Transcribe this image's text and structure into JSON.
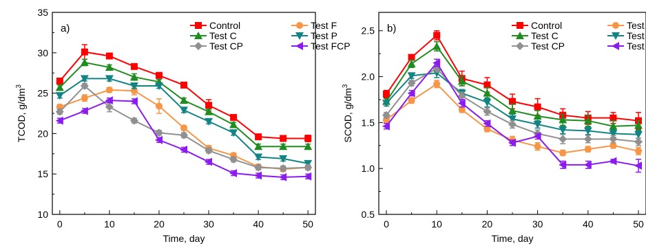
{
  "chart_data": [
    {
      "type": "line",
      "panel_label": "a)",
      "xlabel": "Time, day",
      "ylabel": "TCOD, g/dm",
      "ylabel_sup": "3",
      "xlim": [
        -1.5,
        51.5
      ],
      "ylim": [
        10,
        35
      ],
      "xticks": [
        0,
        10,
        20,
        30,
        40,
        50
      ],
      "yticks": [
        10,
        15,
        20,
        25,
        30,
        35
      ],
      "ytick_labels": [
        "10",
        "15",
        "20",
        "25",
        "30",
        "35"
      ],
      "x": [
        0,
        5,
        10,
        15,
        20,
        25,
        30,
        35,
        40,
        45,
        50
      ],
      "legend_position": "top-right",
      "series": [
        {
          "name": "Control",
          "color": "#ff0000",
          "marker": "square",
          "values": [
            26.5,
            30.1,
            29.6,
            28.3,
            27.2,
            26.0,
            23.5,
            22.0,
            19.6,
            19.4,
            19.4
          ],
          "errors": [
            0.3,
            0.9,
            0.3,
            0.3,
            0.3,
            0.3,
            0.7,
            0.3,
            0.3,
            0.3,
            0.4
          ]
        },
        {
          "name": "Test F",
          "color": "#f79646",
          "marker": "circle",
          "values": [
            23.3,
            24.4,
            25.4,
            25.3,
            23.4,
            20.7,
            18.2,
            17.3,
            15.9,
            15.6,
            15.8
          ],
          "errors": [
            0.3,
            0.4,
            0.3,
            0.5,
            0.9,
            0.3,
            0.3,
            0.3,
            0.3,
            0.3,
            0.3
          ]
        },
        {
          "name": "Test C",
          "color": "#1e8c1e",
          "marker": "triangle-up",
          "values": [
            25.7,
            28.8,
            28.2,
            27.0,
            26.4,
            24.1,
            22.7,
            21.1,
            18.4,
            18.4,
            18.4
          ],
          "errors": [
            0.3,
            0.4,
            0.3,
            0.4,
            0.3,
            0.3,
            0.3,
            0.3,
            0.3,
            0.3,
            0.3
          ]
        },
        {
          "name": "Test P",
          "color": "#138484",
          "marker": "triangle-down",
          "values": [
            24.7,
            26.8,
            26.8,
            25.9,
            25.9,
            22.9,
            21.5,
            20.1,
            17.1,
            16.9,
            16.3
          ],
          "errors": [
            0.3,
            0.3,
            0.3,
            0.3,
            0.3,
            0.3,
            0.3,
            0.3,
            0.3,
            0.3,
            0.3
          ]
        },
        {
          "name": "Test CP",
          "color": "#909090",
          "marker": "diamond",
          "values": [
            22.7,
            25.9,
            23.3,
            21.6,
            20.1,
            19.8,
            17.9,
            16.8,
            15.8,
            15.7,
            15.8
          ],
          "errors": [
            0.3,
            0.3,
            0.6,
            0.3,
            0.3,
            0.3,
            0.3,
            0.3,
            0.3,
            0.3,
            0.3
          ]
        },
        {
          "name": "Test FCP",
          "color": "#8b1cf0",
          "marker": "triangle-left",
          "values": [
            21.6,
            22.8,
            24.1,
            24.0,
            19.2,
            18.0,
            16.5,
            15.1,
            14.8,
            14.6,
            14.7
          ],
          "errors": [
            0.3,
            0.3,
            0.3,
            0.3,
            0.3,
            0.3,
            0.3,
            0.3,
            0.3,
            0.3,
            0.3
          ]
        }
      ]
    },
    {
      "type": "line",
      "panel_label": "b)",
      "xlabel": "Time, day",
      "ylabel": "SCOD, g/dm",
      "ylabel_sup": "3",
      "xlim": [
        -1.5,
        51.5
      ],
      "ylim": [
        0.5,
        2.7
      ],
      "xticks": [
        0,
        10,
        20,
        30,
        40,
        50
      ],
      "yticks": [
        0.5,
        1.0,
        1.5,
        2.0,
        2.5
      ],
      "ytick_labels": [
        "0.5",
        "1.0",
        "1.5",
        "2.0",
        "2.5"
      ],
      "x": [
        0,
        5,
        10,
        15,
        20,
        25,
        30,
        35,
        40,
        45,
        50
      ],
      "legend_position": "top-right",
      "series": [
        {
          "name": "Control",
          "color": "#ff0000",
          "marker": "square",
          "values": [
            1.81,
            2.21,
            2.45,
            1.98,
            1.91,
            1.73,
            1.67,
            1.58,
            1.55,
            1.55,
            1.52
          ],
          "errors": [
            0.04,
            0.03,
            0.05,
            0.08,
            0.08,
            0.08,
            0.09,
            0.07,
            0.07,
            0.06,
            0.09
          ]
        },
        {
          "name": "Test F",
          "color": "#f79646",
          "marker": "circle",
          "values": [
            1.53,
            1.74,
            1.92,
            1.64,
            1.43,
            1.31,
            1.24,
            1.17,
            1.21,
            1.25,
            1.19
          ],
          "errors": [
            0.03,
            0.03,
            0.04,
            0.03,
            0.03,
            0.04,
            0.04,
            0.03,
            0.03,
            0.03,
            0.04
          ]
        },
        {
          "name": "Test C",
          "color": "#1e8c1e",
          "marker": "triangle-up",
          "values": [
            1.73,
            2.14,
            2.33,
            1.95,
            1.82,
            1.63,
            1.57,
            1.53,
            1.52,
            1.46,
            1.47
          ],
          "errors": [
            0.03,
            0.04,
            0.05,
            0.05,
            0.06,
            0.07,
            0.06,
            0.06,
            0.06,
            0.06,
            0.05
          ]
        },
        {
          "name": "Test P",
          "color": "#138484",
          "marker": "triangle-down",
          "values": [
            1.71,
            2.01,
            2.04,
            1.82,
            1.72,
            1.54,
            1.48,
            1.42,
            1.41,
            1.38,
            1.37
          ],
          "errors": [
            0.03,
            0.03,
            0.05,
            0.04,
            0.05,
            0.05,
            0.04,
            0.04,
            0.04,
            0.04,
            0.04
          ]
        },
        {
          "name": "Test CP",
          "color": "#909090",
          "marker": "diamond",
          "values": [
            1.58,
            1.93,
            2.09,
            1.79,
            1.62,
            1.48,
            1.38,
            1.32,
            1.32,
            1.32,
            1.29
          ],
          "errors": [
            0.03,
            0.03,
            0.04,
            0.04,
            0.04,
            0.04,
            0.04,
            0.05,
            0.04,
            0.04,
            0.04
          ]
        },
        {
          "name": "Test FCP",
          "color": "#8b1cf0",
          "marker": "triangle-left",
          "values": [
            1.46,
            1.82,
            2.15,
            1.71,
            1.49,
            1.28,
            1.35,
            1.04,
            1.04,
            1.08,
            1.03
          ],
          "errors": [
            0.03,
            0.03,
            0.04,
            0.04,
            0.03,
            0.03,
            0.03,
            0.04,
            0.04,
            0.02,
            0.07
          ]
        }
      ]
    }
  ]
}
